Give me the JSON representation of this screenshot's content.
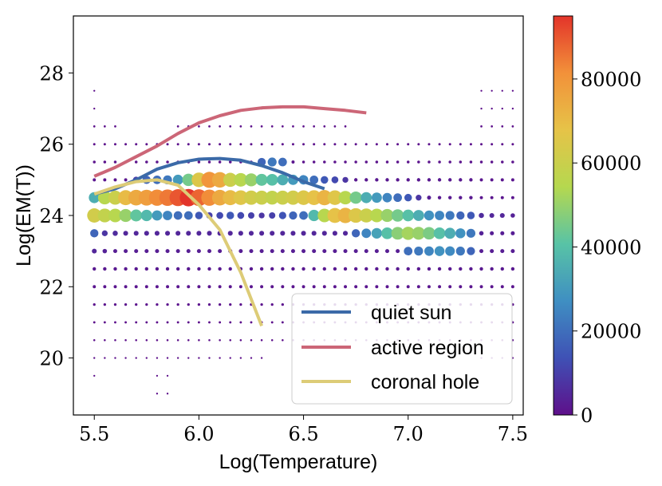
{
  "chart_data": {
    "type": "scatter",
    "title": "",
    "xlabel": "Log(Temperature)",
    "ylabel": "Log(EM(T))",
    "xlim": [
      5.4,
      7.55
    ],
    "ylim": [
      18.4,
      29.6
    ],
    "xticks": [
      5.5,
      6.0,
      6.5,
      7.0,
      7.5
    ],
    "xtick_labels": [
      "5.5",
      "6.0",
      "6.5",
      "7.0",
      "7.5"
    ],
    "yticks": [
      20,
      22,
      24,
      26,
      28
    ],
    "ytick_labels": [
      "20",
      "22",
      "24",
      "26",
      "28"
    ],
    "colorbar": {
      "colormap": "Spectral_r",
      "min": 0,
      "max": 95000,
      "ticks": [
        0,
        20000,
        40000,
        60000,
        80000
      ],
      "tick_labels": [
        "0",
        "20000",
        "40000",
        "60000",
        "80000"
      ],
      "colors": [
        "#5e0f8a",
        "#3f51b5",
        "#3f8fc2",
        "#58c3a6",
        "#b5d84f",
        "#e6c348",
        "#f2913a",
        "#e3342a"
      ]
    },
    "scatter": {
      "x_grid_start": 5.5,
      "x_grid_step": 0.05,
      "x_grid_count": 41,
      "rows": [
        {
          "y": 28.0,
          "values": [
            0,
            0,
            0,
            0,
            0,
            0,
            0,
            0,
            0,
            0,
            0,
            0,
            0,
            0,
            0,
            0,
            0,
            0,
            0,
            0,
            0,
            0,
            0,
            0,
            0,
            0,
            0,
            0,
            0,
            0,
            0,
            0,
            0,
            0,
            0,
            0,
            0,
            0,
            0,
            0,
            0
          ]
        },
        {
          "y": 27.5,
          "values": [
            200,
            0,
            0,
            0,
            0,
            0,
            0,
            0,
            0,
            0,
            0,
            0,
            0,
            0,
            0,
            0,
            0,
            0,
            0,
            0,
            0,
            0,
            0,
            0,
            0,
            0,
            0,
            0,
            0,
            0,
            0,
            0,
            0,
            0,
            0,
            0,
            0,
            200,
            200,
            200,
            200
          ]
        },
        {
          "y": 27.0,
          "values": [
            200,
            0,
            0,
            0,
            0,
            0,
            0,
            0,
            0,
            0,
            0,
            0,
            0,
            0,
            0,
            0,
            200,
            0,
            0,
            0,
            0,
            0,
            0,
            0,
            0,
            0,
            0,
            0,
            0,
            0,
            0,
            0,
            0,
            0,
            0,
            0,
            0,
            200,
            200,
            200,
            200
          ]
        },
        {
          "y": 26.5,
          "values": [
            400,
            400,
            400,
            0,
            0,
            0,
            0,
            0,
            400,
            400,
            400,
            400,
            400,
            400,
            400,
            400,
            400,
            400,
            400,
            400,
            400,
            400,
            400,
            400,
            400,
            0,
            0,
            0,
            0,
            0,
            0,
            0,
            0,
            0,
            0,
            0,
            0,
            400,
            400,
            400,
            400
          ]
        },
        {
          "y": 26.0,
          "values": [
            600,
            600,
            600,
            600,
            600,
            600,
            600,
            600,
            600,
            600,
            600,
            600,
            600,
            600,
            600,
            600,
            600,
            600,
            600,
            600,
            600,
            600,
            600,
            600,
            600,
            600,
            600,
            600,
            600,
            600,
            600,
            600,
            600,
            600,
            600,
            600,
            600,
            600,
            600,
            600,
            600
          ]
        },
        {
          "y": 25.5,
          "values": [
            1000,
            1000,
            1000,
            1000,
            1000,
            1000,
            1000,
            1000,
            1000,
            1000,
            1000,
            1000,
            1000,
            1000,
            1000,
            1000,
            18000,
            22000,
            20000,
            1500,
            1000,
            1000,
            1000,
            1000,
            1000,
            1000,
            1000,
            1000,
            1000,
            1000,
            1000,
            1000,
            1000,
            1000,
            1000,
            1000,
            1000,
            1000,
            1000,
            1000,
            1000
          ]
        },
        {
          "y": 25.0,
          "values": [
            1500,
            1500,
            1500,
            1500,
            10000,
            18000,
            20000,
            22000,
            30000,
            45000,
            65000,
            80000,
            75000,
            60000,
            55000,
            50000,
            42000,
            40000,
            35000,
            30000,
            25000,
            20000,
            15000,
            12000,
            8000,
            2000,
            2000,
            2000,
            2000,
            2000,
            2000,
            2000,
            2000,
            2000,
            2000,
            2000,
            2000,
            1500,
            1500,
            1500,
            1500
          ]
        },
        {
          "y": 24.5,
          "values": [
            35000,
            55000,
            60000,
            70000,
            75000,
            78000,
            82000,
            85000,
            90000,
            95000,
            88000,
            82000,
            75000,
            70000,
            66000,
            62000,
            60000,
            58000,
            60000,
            62000,
            65000,
            68000,
            72000,
            66000,
            55000,
            45000,
            35000,
            30000,
            25000,
            20000,
            15000,
            8000,
            3000,
            2000,
            2000,
            2000,
            2000,
            1500,
            1500,
            1500,
            1500
          ]
        },
        {
          "y": 24.0,
          "values": [
            62000,
            58000,
            55000,
            50000,
            42000,
            38000,
            30000,
            25000,
            20000,
            20000,
            15000,
            10000,
            12000,
            15000,
            12000,
            10000,
            8000,
            10000,
            14000,
            18000,
            20000,
            38000,
            55000,
            68000,
            72000,
            65000,
            60000,
            55000,
            50000,
            45000,
            40000,
            35000,
            28000,
            25000,
            22000,
            18000,
            15000,
            6000,
            5000,
            5000,
            4000
          ]
        },
        {
          "y": 23.5,
          "values": [
            18000,
            8000,
            6000,
            5000,
            5000,
            5000,
            5000,
            5000,
            5000,
            5000,
            5000,
            5000,
            5000,
            5000,
            5000,
            5000,
            5000,
            5000,
            5000,
            5000,
            5000,
            5000,
            5000,
            5000,
            5000,
            18000,
            25000,
            32000,
            40000,
            48000,
            52000,
            50000,
            46000,
            40000,
            35000,
            28000,
            22000,
            4000,
            3000,
            3000,
            3000
          ]
        },
        {
          "y": 23.0,
          "values": [
            5000,
            4000,
            3000,
            3000,
            3000,
            3000,
            3000,
            3000,
            3000,
            3000,
            3000,
            3000,
            3000,
            3000,
            3000,
            3000,
            3000,
            3000,
            3000,
            3000,
            3000,
            3000,
            3000,
            3000,
            3000,
            3000,
            3000,
            3000,
            3000,
            3000,
            20000,
            22000,
            25000,
            28000,
            26000,
            22000,
            18000,
            3000,
            3000,
            3000,
            3000
          ]
        },
        {
          "y": 22.5,
          "values": [
            2000,
            2000,
            2000,
            2000,
            2000,
            2000,
            2000,
            2000,
            2000,
            2000,
            2000,
            2000,
            2000,
            2000,
            2000,
            2000,
            2000,
            2000,
            2000,
            2000,
            2000,
            2000,
            2000,
            2000,
            2000,
            2000,
            2000,
            2000,
            2000,
            2000,
            2000,
            2000,
            2000,
            2000,
            2000,
            2000,
            2000,
            2000,
            2000,
            2000,
            2000
          ]
        },
        {
          "y": 22.0,
          "values": [
            1500,
            1500,
            1500,
            1500,
            1500,
            1500,
            1500,
            1500,
            1500,
            1500,
            1500,
            1500,
            1500,
            1500,
            1500,
            1500,
            1500,
            1500,
            1500,
            1500,
            1500,
            1500,
            1500,
            1500,
            1500,
            1500,
            1500,
            1500,
            1500,
            1500,
            1500,
            1500,
            1500,
            1500,
            1500,
            1500,
            1500,
            1500,
            1500,
            1500,
            1500
          ]
        },
        {
          "y": 21.5,
          "values": [
            800,
            800,
            800,
            800,
            800,
            800,
            800,
            800,
            800,
            800,
            800,
            800,
            800,
            800,
            800,
            800,
            800,
            800,
            800,
            800,
            800,
            800,
            800,
            800,
            800,
            800,
            800,
            800,
            800,
            800,
            800,
            800,
            800,
            800,
            800,
            800,
            800,
            800,
            800,
            800,
            800
          ]
        },
        {
          "y": 21.0,
          "values": [
            500,
            500,
            500,
            500,
            500,
            500,
            500,
            500,
            500,
            500,
            500,
            500,
            500,
            500,
            500,
            500,
            500,
            500,
            500,
            500,
            500,
            500,
            500,
            500,
            500,
            500,
            500,
            500,
            500,
            500,
            500,
            500,
            500,
            500,
            500,
            500,
            500,
            500,
            500,
            500,
            500
          ]
        },
        {
          "y": 20.5,
          "values": [
            300,
            300,
            300,
            300,
            300,
            300,
            300,
            300,
            300,
            300,
            300,
            300,
            300,
            300,
            300,
            300,
            300,
            300,
            300,
            300,
            300,
            300,
            300,
            300,
            300,
            300,
            300,
            300,
            300,
            300,
            300,
            300,
            300,
            300,
            300,
            300,
            300,
            300,
            300,
            300,
            300
          ]
        },
        {
          "y": 20.0,
          "values": [
            200,
            200,
            200,
            200,
            200,
            200,
            200,
            200,
            200,
            200,
            200,
            200,
            200,
            200,
            200,
            200,
            200,
            0,
            0,
            0,
            0,
            0,
            0,
            0,
            0,
            0,
            0,
            0,
            0,
            0,
            0,
            0,
            0,
            0,
            0,
            0,
            0,
            200,
            200,
            200,
            200
          ]
        },
        {
          "y": 19.5,
          "values": [
            200,
            0,
            0,
            0,
            0,
            0,
            200,
            200,
            0,
            0,
            0,
            0,
            0,
            0,
            0,
            0,
            0,
            0,
            0,
            0,
            0,
            0,
            0,
            0,
            0,
            0,
            0,
            0,
            0,
            0,
            0,
            0,
            0,
            0,
            0,
            0,
            0,
            0,
            0,
            0,
            0
          ]
        },
        {
          "y": 19.0,
          "values": [
            0,
            0,
            0,
            0,
            0,
            0,
            200,
            200,
            0,
            0,
            0,
            0,
            0,
            0,
            0,
            0,
            0,
            0,
            0,
            0,
            0,
            0,
            0,
            0,
            0,
            0,
            0,
            0,
            0,
            0,
            0,
            0,
            0,
            0,
            0,
            0,
            0,
            0,
            0,
            0,
            0
          ]
        }
      ]
    },
    "series": [
      {
        "name": "quiet sun",
        "color": "#3b6aa8",
        "x": [
          5.5,
          5.6,
          5.7,
          5.8,
          5.9,
          6.0,
          6.1,
          6.2,
          6.3,
          6.4,
          6.5,
          6.6
        ],
        "y": [
          24.6,
          24.75,
          25.0,
          25.3,
          25.48,
          25.58,
          25.6,
          25.55,
          25.4,
          25.2,
          24.95,
          24.75
        ]
      },
      {
        "name": "active region",
        "color": "#cc6677",
        "x": [
          5.5,
          5.6,
          5.7,
          5.8,
          5.9,
          6.0,
          6.1,
          6.2,
          6.3,
          6.4,
          6.5,
          6.6,
          6.7,
          6.8
        ],
        "y": [
          25.1,
          25.35,
          25.65,
          25.95,
          26.3,
          26.6,
          26.8,
          26.95,
          27.02,
          27.05,
          27.05,
          27.0,
          26.95,
          26.88
        ]
      },
      {
        "name": "coronal hole",
        "color": "#ddcc77",
        "x": [
          5.5,
          5.6,
          5.7,
          5.8,
          5.9,
          6.0,
          6.1,
          6.2,
          6.3
        ],
        "y": [
          24.6,
          24.8,
          24.95,
          25.0,
          24.85,
          24.3,
          23.6,
          22.4,
          20.9
        ]
      }
    ],
    "legend": {
      "position": "lower-right",
      "entries": [
        "quiet sun",
        "active region",
        "coronal hole"
      ]
    }
  }
}
